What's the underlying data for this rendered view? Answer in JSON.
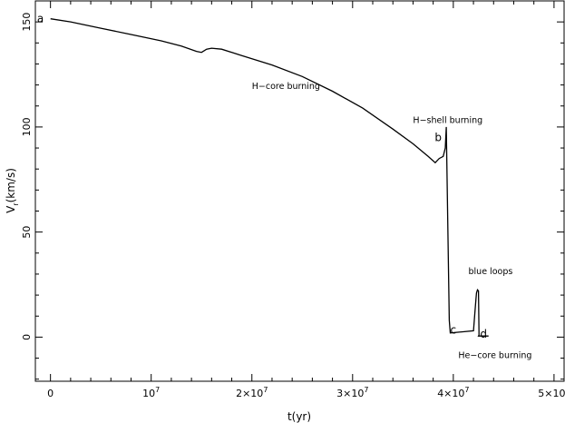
{
  "chart_data": {
    "type": "line",
    "title": "",
    "xlabel": "t(yr)",
    "ylabel": {
      "base": "V",
      "sub": "r",
      "rest": "(km/s)"
    },
    "xlim": [
      -1500000,
      51000000
    ],
    "ylim": [
      -21,
      160
    ],
    "xticks": [
      {
        "value": 0,
        "base": "0",
        "exp": ""
      },
      {
        "value": 10000000,
        "base": "10",
        "exp": "7"
      },
      {
        "value": 20000000,
        "base": "2×10",
        "exp": "7"
      },
      {
        "value": 30000000,
        "base": "3×10",
        "exp": "7"
      },
      {
        "value": 40000000,
        "base": "4×10",
        "exp": "7"
      },
      {
        "value": 50000000,
        "base": "5×10",
        "exp": "7"
      }
    ],
    "yticks": [
      {
        "value": 0,
        "label": "0"
      },
      {
        "value": 50,
        "label": "50"
      },
      {
        "value": 100,
        "label": "100"
      },
      {
        "value": 150,
        "label": "150"
      }
    ],
    "series": [
      {
        "x": [
          0,
          2000000,
          5000000,
          8000000,
          11000000,
          13000000,
          14500000,
          15000000,
          15500000,
          16000000,
          17000000,
          19000000,
          22000000,
          25000000,
          28000000,
          31000000,
          34000000,
          36000000,
          37500000,
          38200000,
          38600000,
          39000000,
          39200000,
          39300000,
          39350000,
          39600000,
          39700000,
          42000000,
          42150000,
          42250000,
          42300000,
          42400000,
          42500000,
          42550000,
          42500000,
          42600000,
          43000000,
          43500000
        ],
        "y": [
          151.5,
          150,
          147,
          144,
          141,
          138.5,
          136,
          135.5,
          137,
          137.5,
          137,
          134,
          129.5,
          124,
          117,
          109,
          99,
          92,
          86,
          83,
          85,
          86,
          90,
          100,
          86,
          8,
          2,
          3,
          12,
          18,
          21,
          22.5,
          22,
          1,
          0.5,
          0.5,
          0.5,
          0.5
        ]
      }
    ],
    "point_labels": [
      {
        "text": "a",
        "x": -1000000,
        "y": 151.5
      },
      {
        "text": "b",
        "x": 38500000,
        "y": 95
      },
      {
        "text": "c",
        "x": 40000000,
        "y": 3.5
      },
      {
        "text": "d",
        "x": 43000000,
        "y": 1.5
      }
    ],
    "annotations": [
      {
        "text": "H−core burning",
        "x": 20000000,
        "y": 118
      },
      {
        "text": "H−shell burning",
        "x": 36000000,
        "y": 102
      },
      {
        "text": "blue loops",
        "x": 41500000,
        "y": 30
      },
      {
        "text": "He−core burning",
        "x": 40500000,
        "y": -10
      }
    ],
    "grid": false
  }
}
